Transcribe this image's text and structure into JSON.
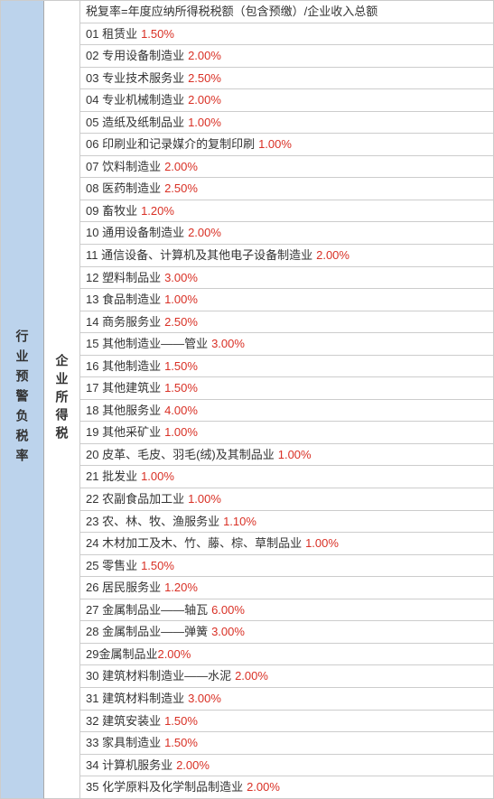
{
  "leftColumn": {
    "label": "行业预警负税率"
  },
  "midColumn": {
    "label": "企业所得税"
  },
  "formula": "税复率=年度应纳所得税税额（包含预缴）/企业收入总额",
  "rows": [
    {
      "num": "01",
      "label": "租赁业",
      "rate": "1.50%"
    },
    {
      "num": "02",
      "label": "专用设备制造业",
      "rate": "2.00%"
    },
    {
      "num": "03",
      "label": "专业技术服务业",
      "rate": "2.50%"
    },
    {
      "num": "04",
      "label": "专业机械制造业",
      "rate": "2.00%"
    },
    {
      "num": "05",
      "label": "造纸及纸制品业",
      "rate": "1.00%"
    },
    {
      "num": "06",
      "label": "印刷业和记录媒介的复制印刷",
      "rate": "1.00%"
    },
    {
      "num": "07",
      "label": "饮料制造业",
      "rate": "2.00%"
    },
    {
      "num": "08",
      "label": "医药制造业",
      "rate": "2.50%"
    },
    {
      "num": "09",
      "label": "畜牧业",
      "rate": "1.20%"
    },
    {
      "num": "10",
      "label": "通用设备制造业",
      "rate": "2.00%"
    },
    {
      "num": "11",
      "label": "通信设备、计算机及其他电子设备制造业",
      "rate": "2.00%"
    },
    {
      "num": "12",
      "label": "塑料制品业",
      "rate": "3.00%"
    },
    {
      "num": "13",
      "label": "食品制造业",
      "rate": "1.00%"
    },
    {
      "num": "14",
      "label": "商务服务业",
      "rate": "2.50%"
    },
    {
      "num": "15",
      "label": "其他制造业——管业",
      "rate": "3.00%"
    },
    {
      "num": "16",
      "label": "其他制造业",
      "rate": "1.50%"
    },
    {
      "num": "17",
      "label": "其他建筑业",
      "rate": "1.50%"
    },
    {
      "num": "18",
      "label": "其他服务业",
      "rate": "4.00%"
    },
    {
      "num": "19",
      "label": "其他采矿业",
      "rate": "1.00%"
    },
    {
      "num": "20",
      "label": "皮革、毛皮、羽毛(绒)及其制品业",
      "rate": "1.00%"
    },
    {
      "num": "21",
      "label": "批发业",
      "rate": "1.00%"
    },
    {
      "num": "22",
      "label": "农副食品加工业",
      "rate": "1.00%"
    },
    {
      "num": "23",
      "label": "农、林、牧、渔服务业",
      "rate": "1.10%"
    },
    {
      "num": "24",
      "label": "木材加工及木、竹、藤、棕、草制品业",
      "rate": "1.00%"
    },
    {
      "num": "25",
      "label": "零售业",
      "rate": "1.50%"
    },
    {
      "num": "26",
      "label": "居民服务业",
      "rate": "1.20%"
    },
    {
      "num": "27",
      "label": "金属制品业——轴瓦",
      "rate": "6.00%"
    },
    {
      "num": "28",
      "label": "金属制品业——弹簧",
      "rate": "3.00%"
    },
    {
      "num": "29",
      "label": "金属制品业",
      "rate": "2.00%",
      "nospace": true
    },
    {
      "num": "30",
      "label": "建筑材料制造业——水泥",
      "rate": "2.00%"
    },
    {
      "num": "31",
      "label": "建筑材料制造业",
      "rate": "3.00%"
    },
    {
      "num": "32",
      "label": "建筑安装业",
      "rate": "1.50%"
    },
    {
      "num": "33",
      "label": "家具制造业",
      "rate": "1.50%"
    },
    {
      "num": "34",
      "label": "计算机服务业",
      "rate": "2.00%"
    },
    {
      "num": "35",
      "label": "化学原料及化学制品制造业",
      "rate": "2.00%"
    }
  ]
}
